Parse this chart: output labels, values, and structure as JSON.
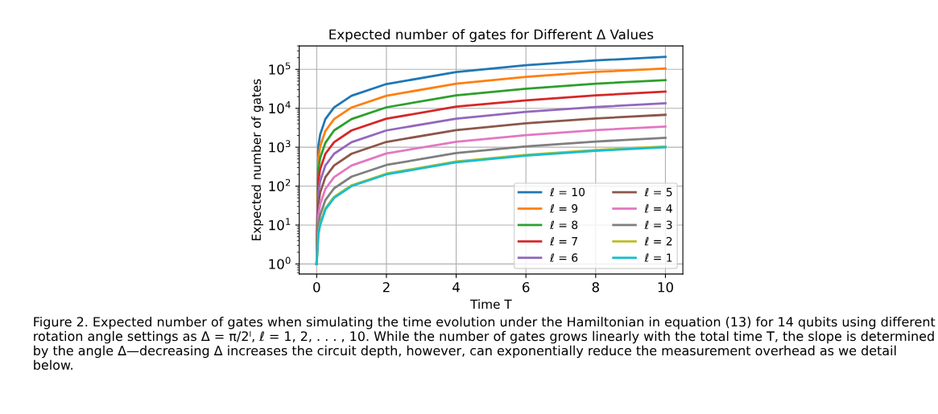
{
  "chart_data": {
    "type": "line",
    "title": "Expected number of gates for Different Δ Values",
    "xlabel": "Time T",
    "ylabel": "Expected number of gates",
    "x": [
      0,
      0.05,
      0.1,
      0.25,
      0.5,
      1,
      2,
      4,
      6,
      8,
      10
    ],
    "series": [
      {
        "name": "ℓ = 10",
        "color": "#1f77b4",
        "values": [
          1,
          1100,
          2100,
          5300,
          10500,
          21000,
          42000,
          85000,
          128000,
          170000,
          210000
        ]
      },
      {
        "name": "ℓ = 9",
        "color": "#ff7f0e",
        "values": [
          1,
          530,
          1050,
          2600,
          5300,
          10500,
          21000,
          43000,
          64000,
          86000,
          105000
        ]
      },
      {
        "name": "ℓ = 8",
        "color": "#2ca02c",
        "values": [
          1,
          270,
          530,
          1300,
          2700,
          5300,
          10600,
          21500,
          32000,
          43000,
          53000
        ]
      },
      {
        "name": "ℓ = 7",
        "color": "#d62728",
        "values": [
          1,
          140,
          270,
          680,
          1350,
          2700,
          5400,
          11000,
          16000,
          21500,
          27000
        ]
      },
      {
        "name": "ℓ = 6",
        "color": "#9467bd",
        "values": [
          1,
          70,
          135,
          340,
          680,
          1350,
          2700,
          5400,
          8100,
          10800,
          13500
        ]
      },
      {
        "name": "ℓ = 5",
        "color": "#8c564b",
        "values": [
          1,
          35,
          68,
          170,
          340,
          680,
          1370,
          2750,
          4100,
          5500,
          6800
        ]
      },
      {
        "name": "ℓ = 4",
        "color": "#e377c2",
        "values": [
          1,
          18,
          34,
          85,
          170,
          340,
          690,
          1380,
          2050,
          2750,
          3400
        ]
      },
      {
        "name": "ℓ = 3",
        "color": "#7f7f7f",
        "values": [
          1,
          10,
          18,
          44,
          88,
          175,
          350,
          710,
          1050,
          1400,
          1750
        ]
      },
      {
        "name": "ℓ = 2",
        "color": "#bcbd22",
        "values": [
          1,
          6,
          11,
          27,
          53,
          105,
          210,
          430,
          640,
          850,
          1050
        ]
      },
      {
        "name": "ℓ = 1",
        "color": "#17becf",
        "values": [
          1,
          6,
          10,
          25,
          50,
          100,
          200,
          410,
          610,
          810,
          1000
        ]
      }
    ],
    "log": "y",
    "xlim": [
      -0.5,
      10.5
    ],
    "xticks": [
      0,
      2,
      4,
      6,
      8,
      10
    ],
    "ylim": [
      0.55,
      400000
    ],
    "yticks": [
      {
        "value": 1,
        "label": "10$^{0}$"
      },
      {
        "value": 10,
        "label": "10$^{1}$"
      },
      {
        "value": 100,
        "label": "10$^{2}$"
      },
      {
        "value": 1000,
        "label": "10$^{3}$"
      },
      {
        "value": 10000,
        "label": "10$^{4}$"
      },
      {
        "value": 100000,
        "label": "10$^{5}$"
      }
    ],
    "grid": true,
    "legend": "bottom right",
    "marker": "none",
    "line_style": "solid",
    "annotations": [
      "Figure 2. Expected number of gates when simulating the time evolution under the Hamiltonian in equation (13) for 14 qubits using different rotation angle settings as Δ = π/2ˡ, ℓ = 1, 2, . . . , 10. While the number of gates grows linearly with the total time T, the slope is determined by the angle Δ—decreasing Δ increases the circuit depth, however, can exponentially reduce the measurement overhead as we detail below."
    ]
  }
}
